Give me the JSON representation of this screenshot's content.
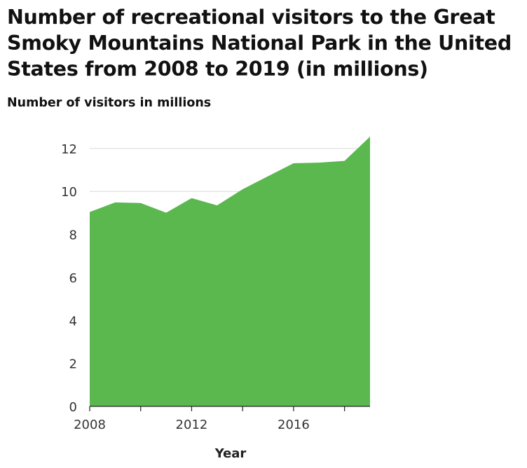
{
  "chart_data": {
    "type": "area",
    "title": "Number of recreational visitors to the Great Smoky Mountains National Park in the United States from 2008 to 2019 (in millions)",
    "ylabel": "Number of visitors in millions",
    "xlabel": "Year",
    "x": [
      2008,
      2009,
      2010,
      2011,
      2012,
      2013,
      2014,
      2015,
      2016,
      2017,
      2018,
      2019
    ],
    "values": [
      9.04,
      9.49,
      9.46,
      9.01,
      9.69,
      9.35,
      10.1,
      10.71,
      11.31,
      11.34,
      11.42,
      12.55
    ],
    "xlim": [
      2008,
      2019
    ],
    "ylim": [
      0,
      12.55
    ],
    "yticks": [
      0,
      2,
      4,
      6,
      8,
      10,
      12
    ],
    "xticks_labeled": [
      2008,
      2012,
      2016
    ],
    "xticks_marks": [
      2008,
      2010,
      2012,
      2014,
      2016,
      2018
    ],
    "grid": "horizontal",
    "fill_color": "#5ab84f",
    "grid_color": "#d9d9d9",
    "legend": "none"
  }
}
